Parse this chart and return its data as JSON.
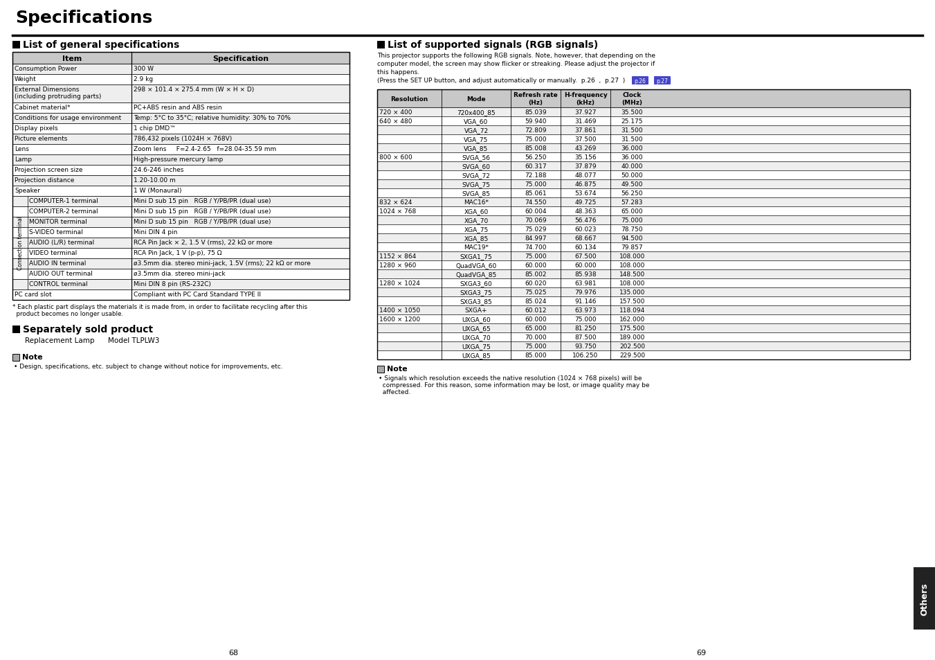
{
  "title": "Specifications",
  "section1_title": "List of general specifications",
  "section2_title": "List of supported signals (RGB signals)",
  "section2_text1": "This projector supports the following RGB signals. Note, however, that depending on the",
  "section2_text2": "computer model, the screen may show flicker or streaking. Please adjust the projector if",
  "section2_text3": "this happens.",
  "section2_text4": "(Press the SET UP button, and adjust automatically or manually.  p.26  ,  p.27  )",
  "gen_spec_headers": [
    "Item",
    "Specification"
  ],
  "gen_spec_rows": [
    [
      "Consumption Power",
      "300 W"
    ],
    [
      "Weight",
      "2.9 kg"
    ],
    [
      "External Dimensions\n(including protruding parts)",
      "298 × 101.4 × 275.4 mm (W × H × D)"
    ],
    [
      "Cabinet material*",
      "PC+ABS resin and ABS resin"
    ],
    [
      "Conditions for usage environment",
      "Temp: 5°C to 35°C; relative humidity: 30% to 70%"
    ],
    [
      "Display pixels",
      "1 chip DMD™"
    ],
    [
      "Picture elements",
      "786,432 pixels (1024H × 768V)"
    ],
    [
      "Lens",
      "Zoom lens     F=2.4-2.65   f=28.04-35.59 mm"
    ],
    [
      "Lamp",
      "High-pressure mercury lamp"
    ],
    [
      "Projection screen size",
      "24.6-246 inches"
    ],
    [
      "Projection distance",
      "1.20-10.00 m"
    ],
    [
      "Speaker",
      "1 W (Monaural)"
    ],
    [
      "COMPUTER-1 terminal",
      "Mini D sub 15 pin   RGB / Y/PB/PR (dual use)"
    ],
    [
      "COMPUTER-2 terminal",
      "Mini D sub 15 pin   RGB / Y/PB/PR (dual use)"
    ],
    [
      "MONITOR terminal",
      "Mini D sub 15 pin   RGB / Y/PB/PR (dual use)"
    ],
    [
      "S-VIDEO terminal",
      "Mini DIN 4 pin"
    ],
    [
      "AUDIO (L/R) terminal",
      "RCA Pin Jack × 2, 1.5 V (rms), 22 kΩ or more"
    ],
    [
      "VIDEO terminal",
      "RCA Pin Jack, 1 V (p-p), 75 Ω"
    ],
    [
      "AUDIO IN terminal",
      "ø3.5mm dia. stereo mini-jack, 1.5V (rms); 22 kΩ or more"
    ],
    [
      "AUDIO OUT terminal",
      "ø3.5mm dia. stereo mini-jack"
    ],
    [
      "CONTROL terminal",
      "Mini DIN 8 pin (RS-232C)"
    ],
    [
      "PC card slot",
      "Compliant with PC Card Standard TYPE II"
    ]
  ],
  "connection_terminal_rows": [
    12,
    13,
    14,
    15,
    16,
    17,
    18,
    19,
    20
  ],
  "footnote1": "* Each plastic part displays the materials it is made from, in order to facilitate recycling after this",
  "footnote2": "  product becomes no longer usable.",
  "separately_sold": "Separately sold product",
  "replacement_lamp": "Replacement Lamp      Model TLPLW3",
  "note_label": "Note",
  "note_text_left": "• Design, specifications, etc. subject to change without notice for improvements, etc.",
  "signal_headers": [
    "Resolution",
    "Mode",
    "Refresh rate\n(Hz)",
    "H-frequency\n(kHz)",
    "Clock\n(MHz)"
  ],
  "signal_rows": [
    [
      "720 × 400",
      "720x400_85",
      "85.039",
      "37.927",
      "35.500"
    ],
    [
      "640 × 480",
      "VGA_60",
      "59.940",
      "31.469",
      "25.175"
    ],
    [
      "",
      "VGA_72",
      "72.809",
      "37.861",
      "31.500"
    ],
    [
      "",
      "VGA_75",
      "75.000",
      "37.500",
      "31.500"
    ],
    [
      "",
      "VGA_85",
      "85.008",
      "43.269",
      "36.000"
    ],
    [
      "800 × 600",
      "SVGA_56",
      "56.250",
      "35.156",
      "36.000"
    ],
    [
      "",
      "SVGA_60",
      "60.317",
      "37.879",
      "40.000"
    ],
    [
      "",
      "SVGA_72",
      "72.188",
      "48.077",
      "50.000"
    ],
    [
      "",
      "SVGA_75",
      "75.000",
      "46.875",
      "49.500"
    ],
    [
      "",
      "SVGA_85",
      "85.061",
      "53.674",
      "56.250"
    ],
    [
      "832 × 624",
      "MAC16*",
      "74.550",
      "49.725",
      "57.283"
    ],
    [
      "1024 × 768",
      "XGA_60",
      "60.004",
      "48.363",
      "65.000"
    ],
    [
      "",
      "XGA_70",
      "70.069",
      "56.476",
      "75.000"
    ],
    [
      "",
      "XGA_75",
      "75.029",
      "60.023",
      "78.750"
    ],
    [
      "",
      "XGA_85",
      "84.997",
      "68.667",
      "94.500"
    ],
    [
      "",
      "MAC19*",
      "74.700",
      "60.134",
      "79.857"
    ],
    [
      "1152 × 864",
      "SXGA1_75",
      "75.000",
      "67.500",
      "108.000"
    ],
    [
      "1280 × 960",
      "QuadVGA_60",
      "60.000",
      "60.000",
      "108.000"
    ],
    [
      "",
      "QuadVGA_85",
      "85.002",
      "85.938",
      "148.500"
    ],
    [
      "1280 × 1024",
      "SXGA3_60",
      "60.020",
      "63.981",
      "108.000"
    ],
    [
      "",
      "SXGA3_75",
      "75.025",
      "79.976",
      "135.000"
    ],
    [
      "",
      "SXGA3_85",
      "85.024",
      "91.146",
      "157.500"
    ],
    [
      "1400 × 1050",
      "SXGA+",
      "60.012",
      "63.973",
      "118.094"
    ],
    [
      "1600 × 1200",
      "UXGA_60",
      "60.000",
      "75.000",
      "162.000"
    ],
    [
      "",
      "UXGA_65",
      "65.000",
      "81.250",
      "175.500"
    ],
    [
      "",
      "UXGA_70",
      "70.000",
      "87.500",
      "189.000"
    ],
    [
      "",
      "UXGA_75",
      "75.000",
      "93.750",
      "202.500"
    ],
    [
      "",
      "UXGA_85",
      "85.000",
      "106.250",
      "229.500"
    ]
  ],
  "signal_note1": "• Signals which resolution exceeds the native resolution (1024 × 768 pixels) will be",
  "signal_note2": "  compressed. For this reason, some information may be lost, or image quality may be",
  "signal_note3": "  affected.",
  "page_left": "68",
  "page_right": "69",
  "others_label": "Others",
  "bg_color": "#ffffff",
  "header_bg": "#c8c8c8",
  "alt_row_bg": "#eeeeee",
  "text_color": "#000000",
  "conn_label": "Connection terminal"
}
